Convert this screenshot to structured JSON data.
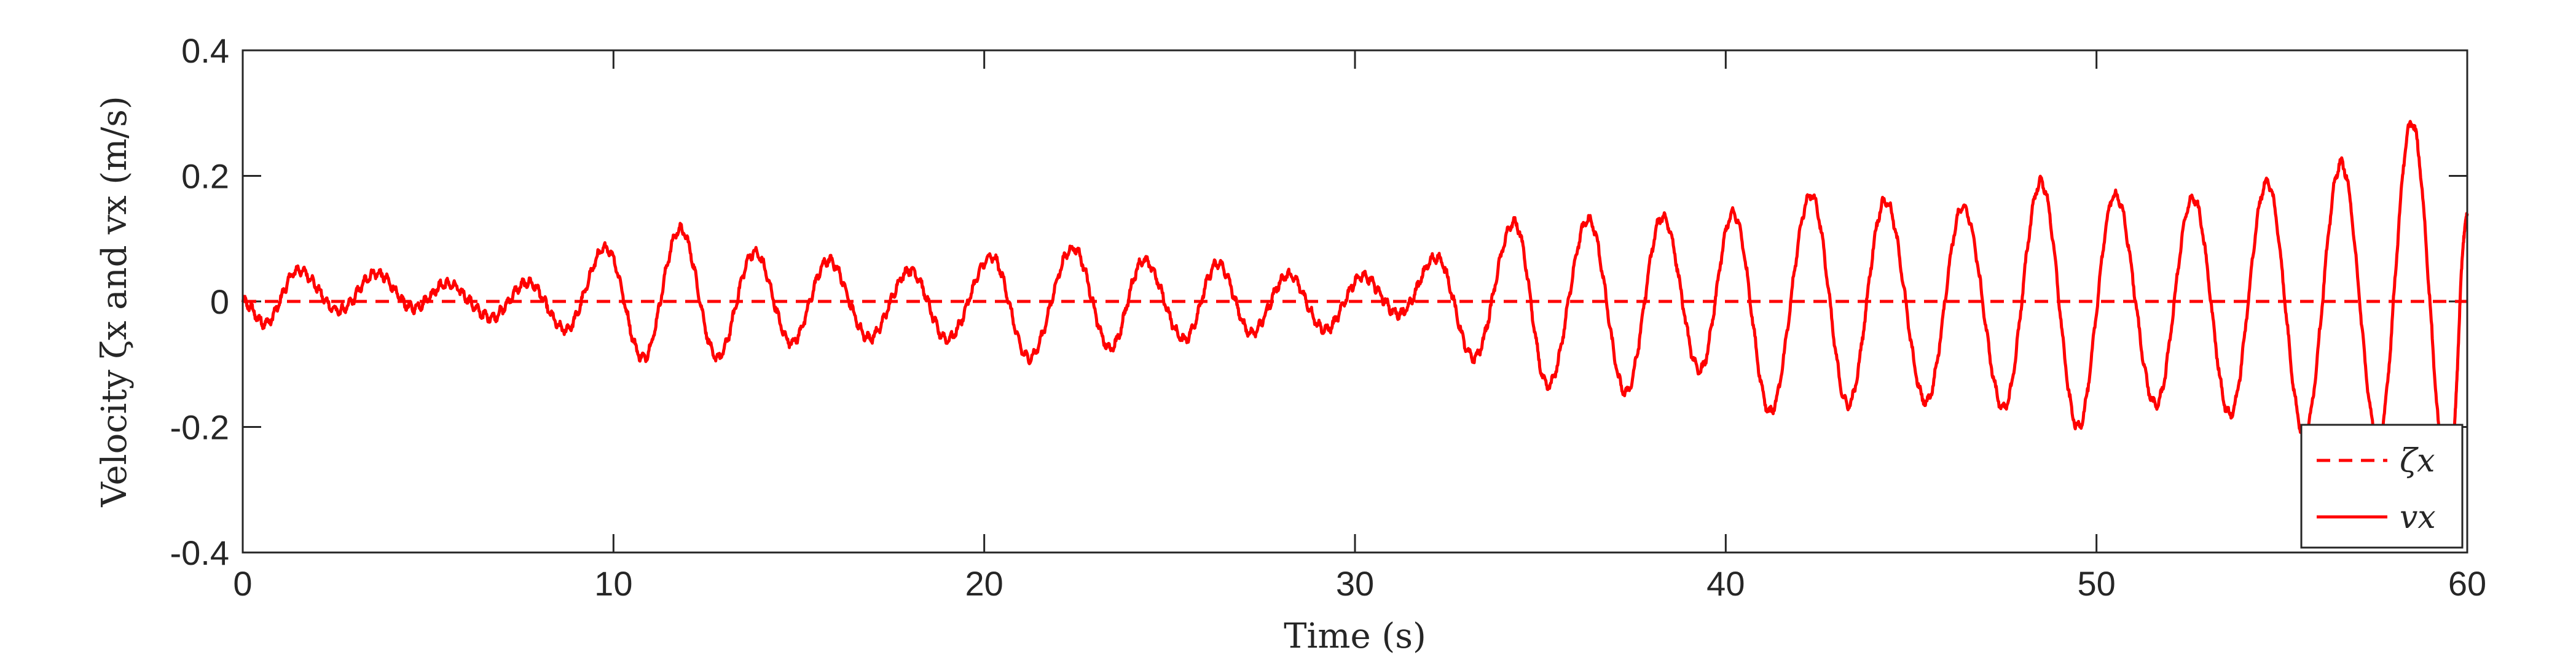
{
  "chart_data": {
    "type": "line",
    "title": "",
    "xlabel": "Time (s)",
    "ylabel": "Velocity ζx and vx (m/s)",
    "xlim": [
      0,
      60
    ],
    "ylim": [
      -0.4,
      0.4
    ],
    "xticks": [
      0,
      10,
      20,
      30,
      40,
      50,
      60
    ],
    "yticks": [
      -0.4,
      -0.2,
      0,
      0.2,
      0.4
    ],
    "xtick_labels": [
      "0",
      "10",
      "20",
      "30",
      "40",
      "50",
      "60"
    ],
    "ytick_labels": [
      "-0.4",
      "-0.2",
      "0",
      "0.2",
      "0.4"
    ],
    "grid": false,
    "legend_position": "bottom-right",
    "colors": {
      "series": "#ff0000",
      "axes": "#262626"
    },
    "series": [
      {
        "name": "ζx",
        "style": "dashed",
        "color": "#ff0000",
        "x": [
          0,
          60
        ],
        "y": [
          0,
          0
        ]
      },
      {
        "name": "vx",
        "style": "solid",
        "color": "#ff0000",
        "peaks": [
          [
            0.0,
            0.0
          ],
          [
            0.6,
            -0.035
          ],
          [
            1.5,
            0.05
          ],
          [
            2.6,
            -0.015
          ],
          [
            3.6,
            0.045
          ],
          [
            4.6,
            -0.01
          ],
          [
            5.5,
            0.028
          ],
          [
            6.7,
            -0.025
          ],
          [
            7.7,
            0.03
          ],
          [
            8.7,
            -0.045
          ],
          [
            9.8,
            0.085
          ],
          [
            10.8,
            -0.09
          ],
          [
            11.8,
            0.115
          ],
          [
            12.8,
            -0.09
          ],
          [
            13.8,
            0.078
          ],
          [
            14.8,
            -0.065
          ],
          [
            15.8,
            0.065
          ],
          [
            16.9,
            -0.058
          ],
          [
            18.0,
            0.05
          ],
          [
            19.0,
            -0.06
          ],
          [
            20.2,
            0.07
          ],
          [
            21.2,
            -0.09
          ],
          [
            22.4,
            0.085
          ],
          [
            23.4,
            -0.075
          ],
          [
            24.3,
            0.065
          ],
          [
            25.4,
            -0.06
          ],
          [
            26.3,
            0.06
          ],
          [
            27.2,
            -0.05
          ],
          [
            28.2,
            0.042
          ],
          [
            29.2,
            -0.045
          ],
          [
            30.2,
            0.04
          ],
          [
            31.2,
            -0.02
          ],
          [
            32.2,
            0.07
          ],
          [
            33.2,
            -0.09
          ],
          [
            34.3,
            0.125
          ],
          [
            35.2,
            -0.135
          ],
          [
            36.3,
            0.13
          ],
          [
            37.3,
            -0.145
          ],
          [
            38.3,
            0.135
          ],
          [
            39.3,
            -0.11
          ],
          [
            40.2,
            0.14
          ],
          [
            41.2,
            -0.175
          ],
          [
            42.3,
            0.17
          ],
          [
            43.3,
            -0.165
          ],
          [
            44.3,
            0.16
          ],
          [
            45.4,
            -0.16
          ],
          [
            46.4,
            0.15
          ],
          [
            47.5,
            -0.17
          ],
          [
            48.5,
            0.19
          ],
          [
            49.5,
            -0.2
          ],
          [
            50.5,
            0.17
          ],
          [
            51.6,
            -0.165
          ],
          [
            52.6,
            0.165
          ],
          [
            53.6,
            -0.18
          ],
          [
            54.6,
            0.19
          ],
          [
            55.6,
            -0.21
          ],
          [
            56.6,
            0.22
          ],
          [
            57.6,
            -0.22
          ],
          [
            58.5,
            0.285
          ],
          [
            59.5,
            -0.3
          ],
          [
            60.0,
            0.14
          ]
        ]
      }
    ]
  }
}
